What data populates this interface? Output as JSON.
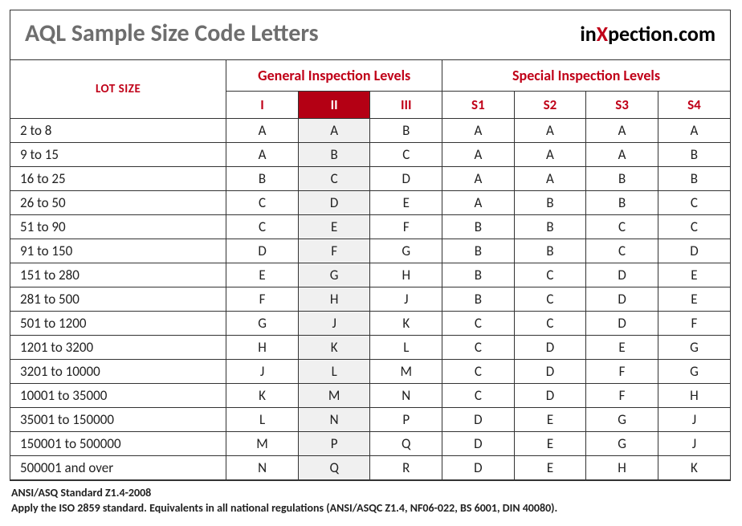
{
  "title": "AQL Sample Size Code Letters",
  "brand": {
    "pre": "in",
    "x": "X",
    "post": "pection.com"
  },
  "headers": {
    "lot_size": "LOT SIZE",
    "general_group": "General Inspection Levels",
    "special_group": "Special Inspection Levels",
    "general_cols": [
      "I",
      "II",
      "III"
    ],
    "special_cols": [
      "S1",
      "S2",
      "S3",
      "S4"
    ],
    "highlight_general_index": 1
  },
  "rows": [
    {
      "lot": "2 to 8",
      "g": [
        "A",
        "A",
        "B"
      ],
      "s": [
        "A",
        "A",
        "A",
        "A"
      ]
    },
    {
      "lot": "9 to 15",
      "g": [
        "A",
        "B",
        "C"
      ],
      "s": [
        "A",
        "A",
        "A",
        "B"
      ]
    },
    {
      "lot": "16 to 25",
      "g": [
        "B",
        "C",
        "D"
      ],
      "s": [
        "A",
        "A",
        "B",
        "B"
      ]
    },
    {
      "lot": "26 to 50",
      "g": [
        "C",
        "D",
        "E"
      ],
      "s": [
        "A",
        "B",
        "B",
        "C"
      ]
    },
    {
      "lot": "51 to 90",
      "g": [
        "C",
        "E",
        "F"
      ],
      "s": [
        "B",
        "B",
        "C",
        "C"
      ]
    },
    {
      "lot": "91 to 150",
      "g": [
        "D",
        "F",
        "G"
      ],
      "s": [
        "B",
        "B",
        "C",
        "D"
      ]
    },
    {
      "lot": "151 to 280",
      "g": [
        "E",
        "G",
        "H"
      ],
      "s": [
        "B",
        "C",
        "D",
        "E"
      ]
    },
    {
      "lot": "281 to 500",
      "g": [
        "F",
        "H",
        "J"
      ],
      "s": [
        "B",
        "C",
        "D",
        "E"
      ]
    },
    {
      "lot": "501 to 1200",
      "g": [
        "G",
        "J",
        "K"
      ],
      "s": [
        "C",
        "C",
        "D",
        "F"
      ]
    },
    {
      "lot": "1201 to 3200",
      "g": [
        "H",
        "K",
        "L"
      ],
      "s": [
        "C",
        "D",
        "E",
        "G"
      ]
    },
    {
      "lot": "3201 to 10000",
      "g": [
        "J",
        "L",
        "M"
      ],
      "s": [
        "C",
        "D",
        "F",
        "G"
      ]
    },
    {
      "lot": "10001 to 35000",
      "g": [
        "K",
        "M",
        "N"
      ],
      "s": [
        "C",
        "D",
        "F",
        "H"
      ]
    },
    {
      "lot": "35001 to 150000",
      "g": [
        "L",
        "N",
        "P"
      ],
      "s": [
        "D",
        "E",
        "G",
        "J"
      ]
    },
    {
      "lot": "150001 to 500000",
      "g": [
        "M",
        "P",
        "Q"
      ],
      "s": [
        "D",
        "E",
        "G",
        "J"
      ]
    },
    {
      "lot": "500001 and over",
      "g": [
        "N",
        "Q",
        "R"
      ],
      "s": [
        "D",
        "E",
        "H",
        "K"
      ]
    }
  ],
  "footer": {
    "line1": "ANSI/ASQ Standard Z1.4-2008",
    "line2": "Apply the ISO 2859 standard. Equivalents in all national regulations (ANSI/ASQC Z1.4, NF06-022, BS 6001, DIN 40080)."
  },
  "style": {
    "accent_color": "#c00018",
    "highlight_bg": "#b40014",
    "highlight_fg": "#ffffff",
    "shaded_col_bg": "#f0f0f0",
    "title_color": "#6e6e6e",
    "border_color": "#333333",
    "background": "#ffffff"
  }
}
